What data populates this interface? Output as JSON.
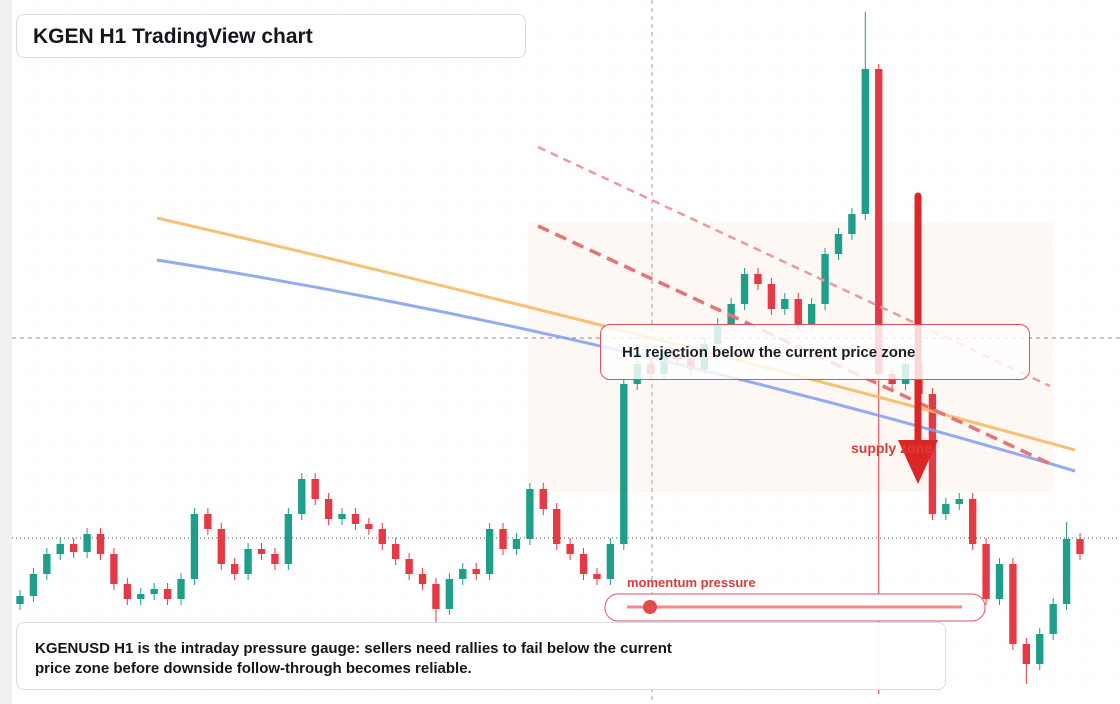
{
  "chart_data": {
    "type": "candlestick",
    "title": "KGEN H1 TradingView chart",
    "annotation": "H1 rejection below the current price zone",
    "zone_label": "supply zone",
    "gauge_label": "momentum pressure",
    "footnote": "KGENUSD H1 is the intraday pressure gauge: sellers need rallies to fail below the current price zone before downside follow-through becomes reliable.",
    "ylim": [
      0,
      704
    ],
    "up_color": "#1f9e89",
    "down_color": "#e63946",
    "open": [
      100,
      108,
      130,
      150,
      160,
      152,
      170,
      150,
      120,
      105,
      110,
      115,
      105,
      125,
      190,
      175,
      140,
      130,
      155,
      150,
      140,
      190,
      225,
      205,
      185,
      190,
      180,
      175,
      160,
      145,
      130,
      120,
      95,
      125,
      135,
      130,
      175,
      155,
      165,
      215,
      195,
      160,
      150,
      130,
      125,
      160,
      320,
      340,
      330,
      350,
      345,
      335,
      360,
      380,
      400,
      430,
      420,
      395,
      405,
      380,
      400,
      450,
      470,
      490,
      635,
      330,
      320,
      340,
      310,
      190,
      200,
      205,
      160,
      105,
      140,
      60,
      40,
      70,
      100,
      165
    ],
    "high": [
      114,
      136,
      156,
      166,
      166,
      176,
      176,
      156,
      126,
      116,
      121,
      121,
      131,
      196,
      196,
      181,
      146,
      161,
      161,
      156,
      196,
      231,
      231,
      211,
      196,
      196,
      186,
      181,
      166,
      151,
      136,
      126,
      131,
      141,
      141,
      181,
      181,
      171,
      221,
      221,
      201,
      166,
      156,
      136,
      166,
      326,
      346,
      346,
      356,
      356,
      351,
      366,
      386,
      406,
      436,
      436,
      426,
      411,
      411,
      406,
      456,
      476,
      496,
      692,
      640,
      336,
      346,
      346,
      316,
      206,
      211,
      211,
      166,
      146,
      146,
      66,
      76,
      106,
      182,
      171
    ],
    "low": [
      94,
      102,
      124,
      144,
      146,
      146,
      144,
      114,
      99,
      99,
      104,
      99,
      99,
      119,
      169,
      134,
      124,
      124,
      144,
      134,
      134,
      184,
      199,
      179,
      179,
      174,
      169,
      154,
      139,
      124,
      114,
      80,
      89,
      119,
      124,
      124,
      149,
      149,
      159,
      189,
      154,
      144,
      124,
      119,
      119,
      154,
      314,
      324,
      324,
      339,
      329,
      329,
      354,
      374,
      394,
      414,
      389,
      389,
      374,
      374,
      394,
      444,
      464,
      484,
      10,
      314,
      314,
      304,
      184,
      184,
      194,
      154,
      99,
      99,
      54,
      20,
      34,
      64,
      94,
      144
    ],
    "close": [
      108,
      130,
      150,
      160,
      152,
      170,
      150,
      120,
      105,
      110,
      115,
      105,
      125,
      190,
      175,
      140,
      130,
      155,
      150,
      140,
      190,
      225,
      205,
      185,
      190,
      180,
      175,
      160,
      145,
      130,
      120,
      95,
      125,
      135,
      130,
      175,
      155,
      165,
      215,
      195,
      160,
      150,
      130,
      125,
      160,
      320,
      340,
      330,
      350,
      345,
      335,
      360,
      380,
      400,
      430,
      420,
      395,
      405,
      380,
      400,
      450,
      470,
      490,
      635,
      330,
      320,
      340,
      310,
      190,
      200,
      205,
      160,
      105,
      140,
      60,
      40,
      70,
      100,
      165,
      150
    ]
  }
}
